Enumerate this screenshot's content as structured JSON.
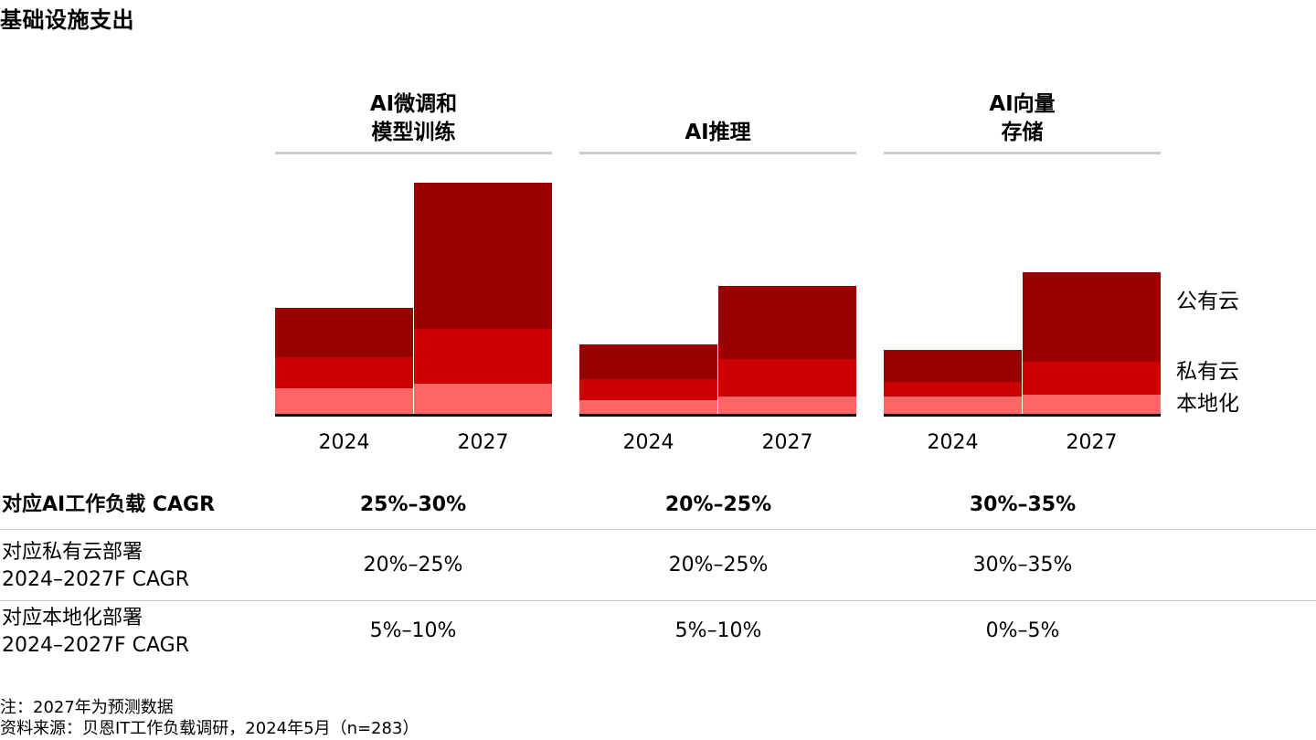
{
  "title": "基础设施支出",
  "chart_data": {
    "type": "bar",
    "stacked": true,
    "groups": [
      {
        "label": "AI微调和\n模型训练",
        "x": [
          "2024",
          "2027"
        ]
      },
      {
        "label": "AI推理",
        "x": [
          "2024",
          "2027"
        ]
      },
      {
        "label": "AI向量\n存储",
        "x": [
          "2024",
          "2027"
        ]
      }
    ],
    "categories": [
      "2024",
      "2027",
      "2024",
      "2027",
      "2024",
      "2027"
    ],
    "series": [
      {
        "name": "本地化",
        "color": "#ff6666",
        "values": [
          28,
          33,
          15,
          19,
          19,
          21
        ]
      },
      {
        "name": "私有云",
        "color": "#cc0000",
        "values": [
          34,
          60,
          23,
          41,
          16,
          36
        ]
      },
      {
        "name": "公有云",
        "color": "#990000",
        "values": [
          54,
          160,
          38,
          80,
          35,
          98
        ]
      }
    ],
    "ylim": [
      0,
      260
    ],
    "xlabel": "",
    "ylabel": "",
    "legend": "right"
  },
  "table": {
    "rows": [
      {
        "label_lines": [
          "对应AI工作负载 CAGR"
        ],
        "bold": true,
        "values": [
          "25%–30%",
          "20%–25%",
          "30%–35%"
        ]
      },
      {
        "label_lines": [
          "对应私有云部署",
          "2024–2027F CAGR"
        ],
        "bold": false,
        "values": [
          "20%–25%",
          "20%–25%",
          "30%–35%"
        ]
      },
      {
        "label_lines": [
          "对应本地化部署",
          "2024–2027F CAGR"
        ],
        "bold": false,
        "values": [
          "5%–10%",
          "5%–10%",
          "0%–5%"
        ]
      }
    ]
  },
  "notes": [
    "注：2027年为预测数据",
    "资料来源：贝恩IT工作负载调研，2024年5月（n=283）"
  ]
}
